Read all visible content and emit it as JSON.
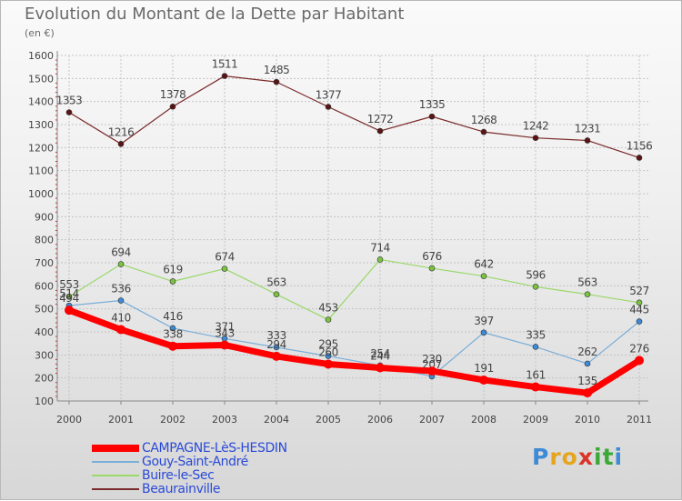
{
  "title": "Evolution du Montant de la Dette par Habitant",
  "unit": "(en €)",
  "logo": {
    "letters": [
      {
        "ch": "P",
        "color": "#3d8ad6"
      },
      {
        "ch": "r",
        "color": "#e6a51e"
      },
      {
        "ch": "o",
        "color": "#e6a51e"
      },
      {
        "ch": "x",
        "color": "#d9332b"
      },
      {
        "ch": "i",
        "color": "#3aa935"
      },
      {
        "ch": "t",
        "color": "#3aa935"
      },
      {
        "ch": "i",
        "color": "#3d8ad6"
      }
    ]
  },
  "chart_data": {
    "type": "line",
    "title": "Evolution du Montant de la Dette par Habitant",
    "ylabel": "(en €)",
    "x": [
      2000,
      2001,
      2002,
      2003,
      2004,
      2005,
      2006,
      2007,
      2008,
      2009,
      2010,
      2011
    ],
    "ylim": [
      100,
      1600
    ],
    "yticks": [
      100,
      200,
      300,
      400,
      500,
      600,
      700,
      800,
      900,
      1000,
      1100,
      1200,
      1300,
      1400,
      1500,
      1600
    ],
    "grid": true,
    "legend_position": "bottom-left",
    "series": [
      {
        "name": "Beaurainville",
        "color": "#7a2a2a",
        "marker": "#5a1414",
        "width": 1.2,
        "values": [
          1353,
          1216,
          1378,
          1511,
          1485,
          1377,
          1272,
          1335,
          1268,
          1242,
          1231,
          1156
        ]
      },
      {
        "name": "Buire-le-Sec",
        "color": "#9ad86a",
        "marker": "#7cc242",
        "width": 1.2,
        "values": [
          553,
          694,
          619,
          674,
          563,
          453,
          714,
          676,
          642,
          596,
          563,
          527
        ]
      },
      {
        "name": "Gouy-Saint-André",
        "color": "#7aaed8",
        "marker": "#3d8ad6",
        "width": 1.2,
        "values": [
          514,
          536,
          416,
          371,
          333,
          295,
          254,
          207,
          397,
          335,
          262,
          445
        ]
      },
      {
        "name": "CAMPAGNE-LèS-HESDIN",
        "color": "#ff0000",
        "marker": "#ff0000",
        "width": 7,
        "values": [
          494,
          410,
          338,
          343,
          294,
          260,
          244,
          230,
          191,
          161,
          135,
          276
        ]
      }
    ]
  }
}
